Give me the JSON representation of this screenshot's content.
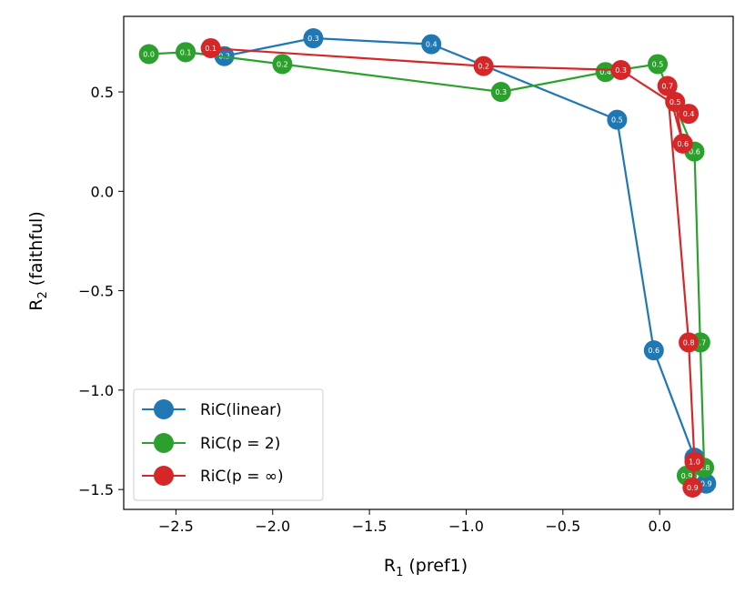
{
  "chart_data": {
    "type": "line",
    "xlabel": "R₁ (pref1)",
    "ylabel": "R₂ (faithful)",
    "xlim": [
      -2.77,
      0.38
    ],
    "ylim": [
      -1.6,
      0.88
    ],
    "xticks": [
      -2.5,
      -2.0,
      -1.5,
      -1.0,
      -0.5,
      0.0
    ],
    "xtick_labels": [
      "−2.5",
      "−2.0",
      "−1.5",
      "−1.0",
      "−0.5",
      "0.0"
    ],
    "yticks": [
      -1.5,
      -1.0,
      -0.5,
      0.0,
      0.5
    ],
    "ytick_labels": [
      "−1.5",
      "−1.0",
      "−0.5",
      "0.0",
      "0.5"
    ],
    "legend_position": "lower-left",
    "series": [
      {
        "name": "RiC(linear)",
        "color": "#1f77b4",
        "points": [
          {
            "x": -2.45,
            "y": 0.7,
            "label": "0.1"
          },
          {
            "x": -2.25,
            "y": 0.68,
            "label": "0.2"
          },
          {
            "x": -1.79,
            "y": 0.77,
            "label": "0.3"
          },
          {
            "x": -1.18,
            "y": 0.74,
            "label": "0.4"
          },
          {
            "x": -0.22,
            "y": 0.36,
            "label": "0.5"
          },
          {
            "x": -0.03,
            "y": -0.8,
            "label": "0.6"
          },
          {
            "x": 0.18,
            "y": -1.34,
            "label": "0.7"
          },
          {
            "x": 0.24,
            "y": -1.47,
            "label": "0.8"
          },
          {
            "x": 0.24,
            "y": -1.47,
            "label": "0.9"
          }
        ]
      },
      {
        "name": "RiC(p = 2)",
        "color": "#2ca02c",
        "points": [
          {
            "x": -2.64,
            "y": 0.69,
            "label": "0.0"
          },
          {
            "x": -2.45,
            "y": 0.7,
            "label": "0.1"
          },
          {
            "x": -1.95,
            "y": 0.64,
            "label": "0.2"
          },
          {
            "x": -0.82,
            "y": 0.5,
            "label": "0.3"
          },
          {
            "x": -0.28,
            "y": 0.6,
            "label": "0.4"
          },
          {
            "x": -0.01,
            "y": 0.64,
            "label": "0.5"
          },
          {
            "x": 0.18,
            "y": 0.2,
            "label": "0.6"
          },
          {
            "x": 0.21,
            "y": -0.76,
            "label": "0.7"
          },
          {
            "x": 0.23,
            "y": -1.39,
            "label": "0.8"
          },
          {
            "x": 0.14,
            "y": -1.43,
            "label": "0.9"
          }
        ]
      },
      {
        "name": "RiC(p = ∞)",
        "color": "#d62728",
        "points": [
          {
            "x": -2.32,
            "y": 0.72,
            "label": "0.1"
          },
          {
            "x": -0.91,
            "y": 0.63,
            "label": "0.2"
          },
          {
            "x": -0.2,
            "y": 0.61,
            "label": "0.3"
          },
          {
            "x": 0.15,
            "y": 0.39,
            "label": "0.4"
          },
          {
            "x": 0.08,
            "y": 0.45,
            "label": "0.5"
          },
          {
            "x": 0.12,
            "y": 0.24,
            "label": "0.6"
          },
          {
            "x": 0.04,
            "y": 0.53,
            "label": "0.7"
          },
          {
            "x": 0.15,
            "y": -0.76,
            "label": "0.8"
          },
          {
            "x": 0.18,
            "y": -1.36,
            "label": "1.0"
          },
          {
            "x": 0.17,
            "y": -1.49,
            "label": "0.9"
          }
        ]
      }
    ]
  }
}
